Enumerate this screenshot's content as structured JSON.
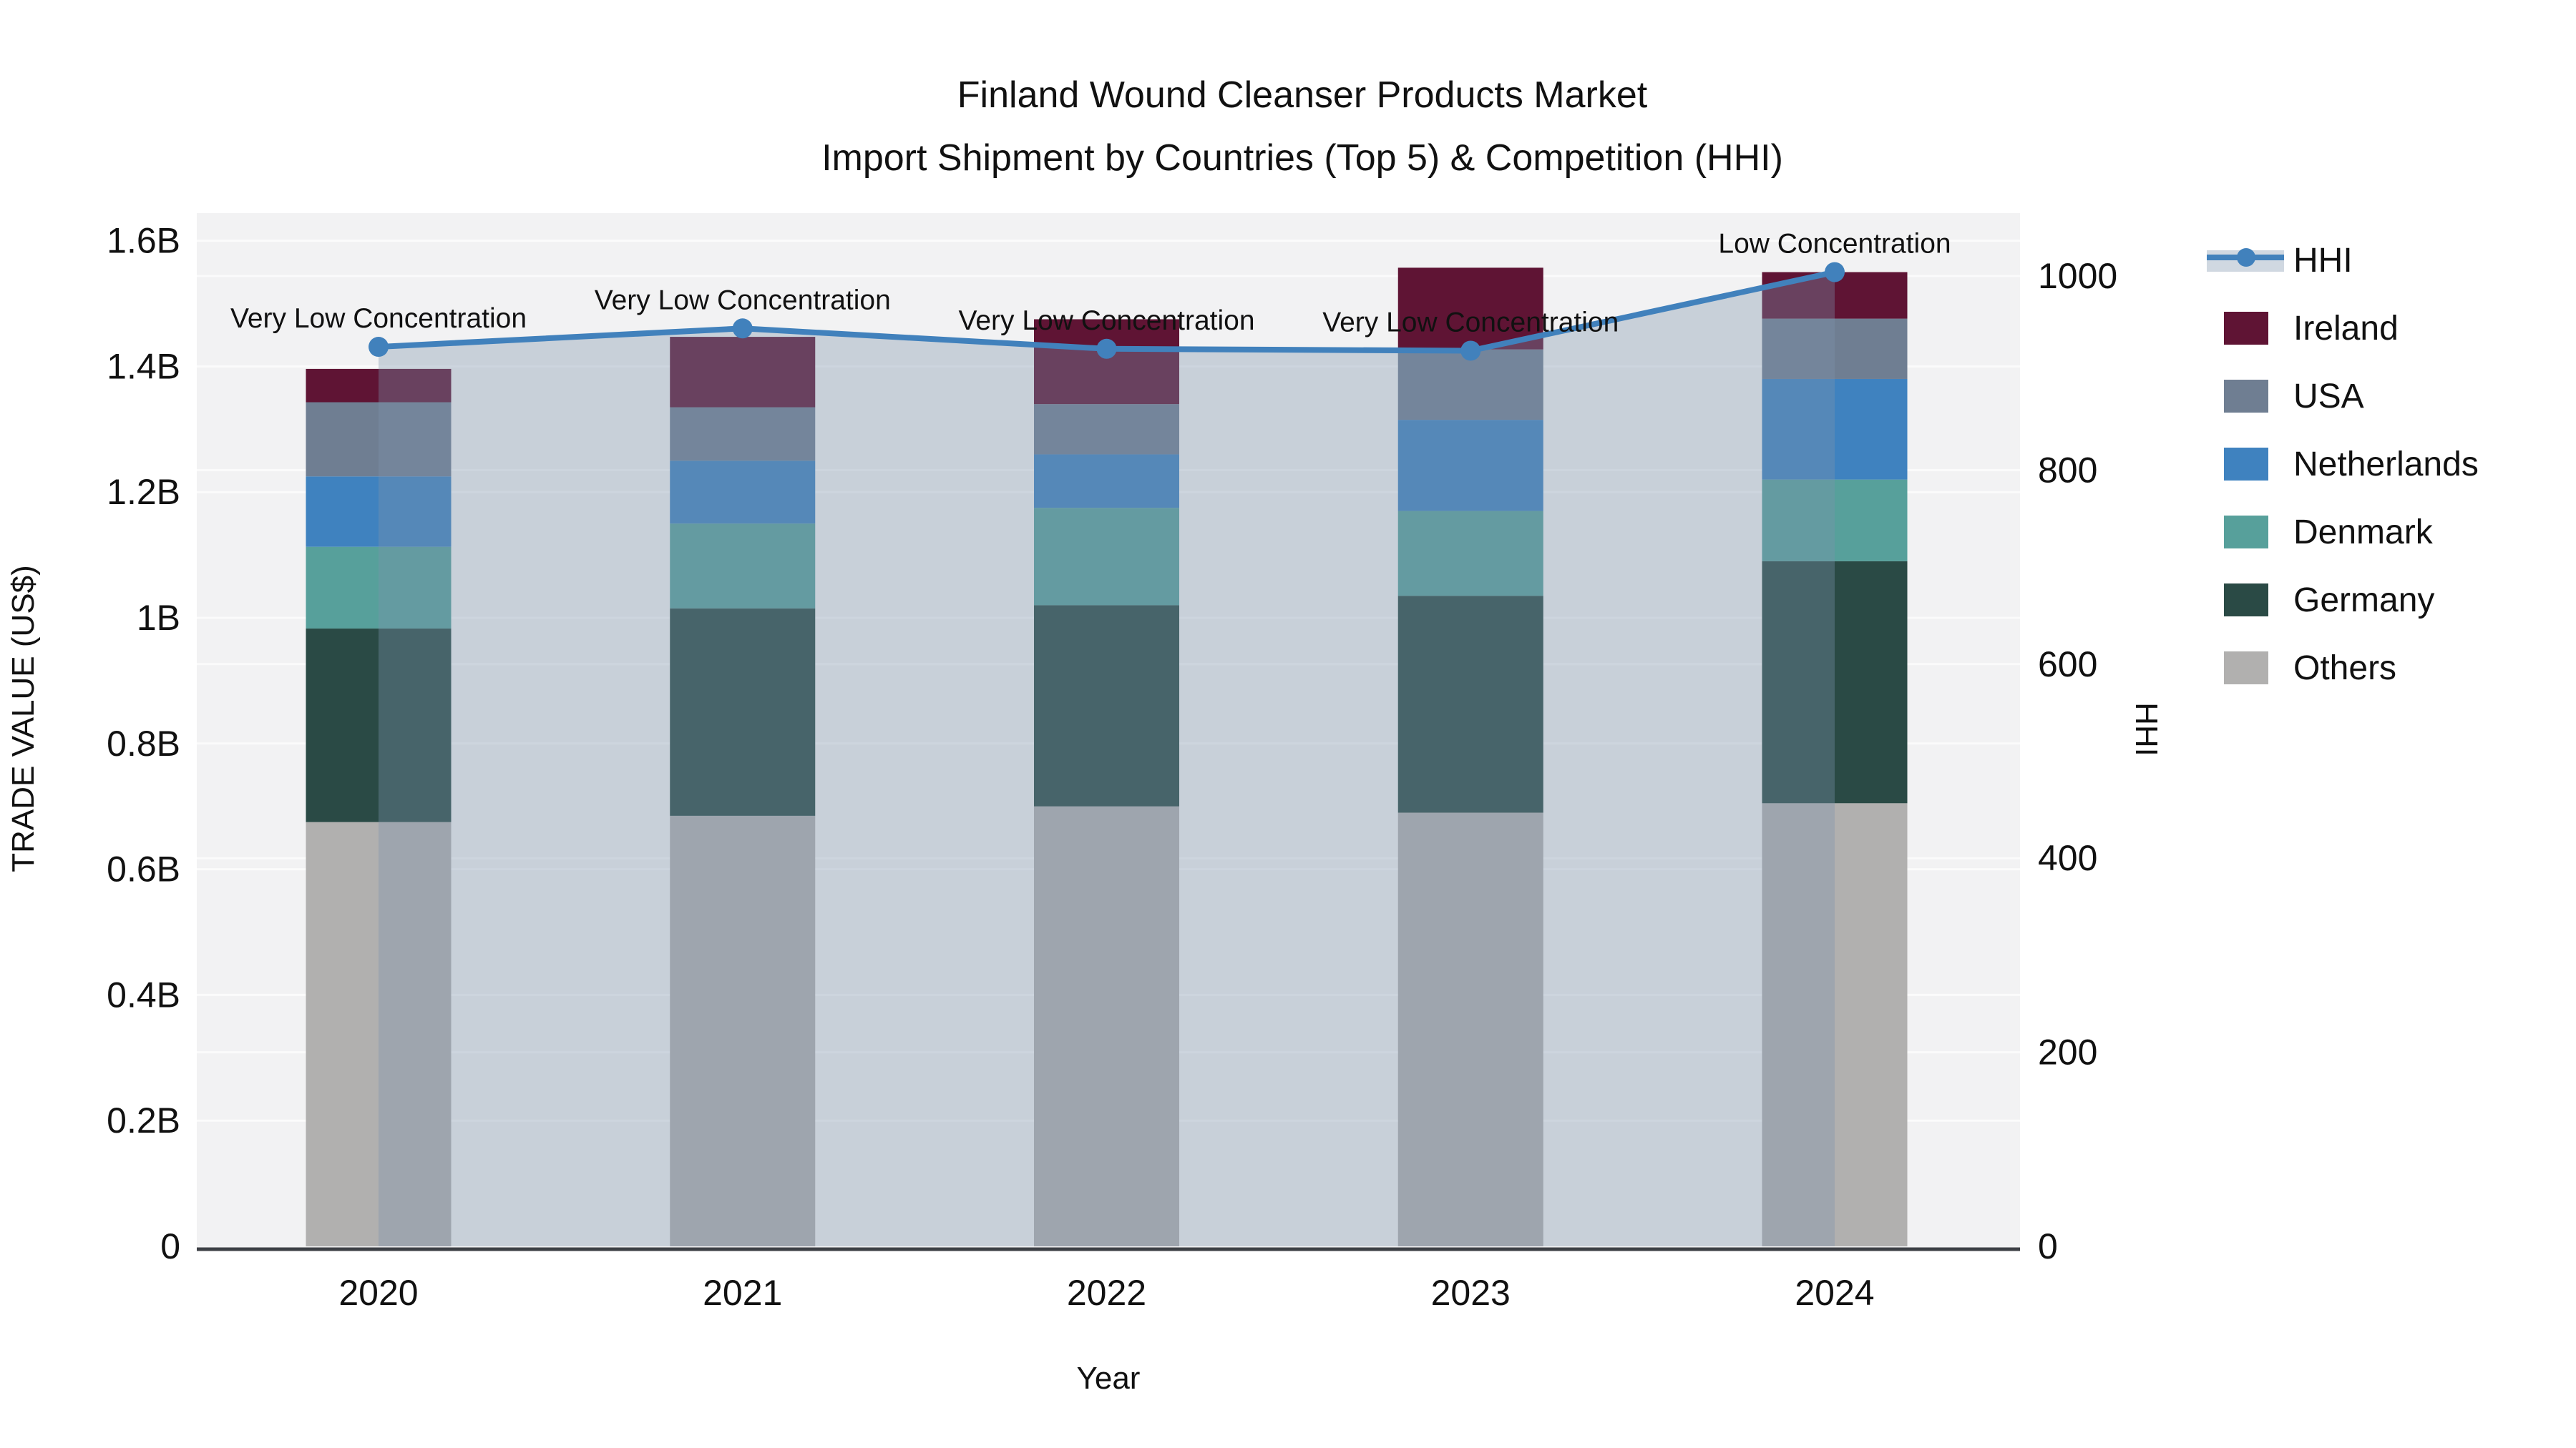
{
  "title": {
    "line1": "Finland Wound Cleanser Products Market",
    "line2": "Import Shipment by Countries (Top 5) & Competition (HHI)"
  },
  "axes": {
    "left": {
      "title": "TRADE VALUE (US$)",
      "tick_labels": [
        "0",
        "0.2B",
        "0.4B",
        "0.6B",
        "0.8B",
        "1B",
        "1.2B",
        "1.4B",
        "1.6B"
      ],
      "tick_values": [
        0,
        0.2,
        0.4,
        0.6,
        0.8,
        1.0,
        1.2,
        1.4,
        1.6
      ],
      "range": [
        0,
        1.644
      ]
    },
    "right": {
      "title": "HHI",
      "tick_labels": [
        "0",
        "200",
        "400",
        "600",
        "800",
        "1000"
      ],
      "tick_values": [
        0,
        200,
        400,
        600,
        800,
        1000
      ],
      "range": [
        0,
        1065
      ]
    },
    "x": {
      "title": "Year"
    }
  },
  "chart_data": {
    "type": "combo: stacked-bar + line-area (dual axis)",
    "categories": [
      "2020",
      "2021",
      "2022",
      "2023",
      "2024"
    ],
    "bar_value_unit": "billions USD (left axis)",
    "bar_series_bottom_to_top": [
      {
        "name": "Others",
        "color": "#b1b0af",
        "values": [
          0.675,
          0.685,
          0.7,
          0.69,
          0.705
        ]
      },
      {
        "name": "Germany",
        "color": "#2a4a45",
        "values": [
          0.308,
          0.33,
          0.32,
          0.345,
          0.385
        ]
      },
      {
        "name": "Denmark",
        "color": "#57a09b",
        "values": [
          0.13,
          0.135,
          0.155,
          0.135,
          0.13
        ]
      },
      {
        "name": "Netherlands",
        "color": "#3f82bf",
        "values": [
          0.112,
          0.1,
          0.085,
          0.145,
          0.16
        ]
      },
      {
        "name": "USA",
        "color": "#6f7e92",
        "values": [
          0.118,
          0.085,
          0.08,
          0.112,
          0.096
        ]
      },
      {
        "name": "Ireland",
        "color": "#5f1434",
        "values": [
          0.053,
          0.112,
          0.135,
          0.13,
          0.074
        ]
      }
    ],
    "bar_totals": [
      1.396,
      1.447,
      1.475,
      1.557,
      1.55
    ],
    "line_series": {
      "name": "HHI",
      "axis": "right",
      "color": "#4181bc",
      "area_fill": "rgba(125,148,172,0.36)",
      "values": [
        927,
        946,
        925,
        923,
        1004
      ],
      "point_annotations": [
        "Very Low Concentration",
        "Very Low Concentration",
        "Very Low Concentration",
        "Very Low Concentration",
        "Low Concentration"
      ]
    }
  },
  "legend": {
    "items": [
      {
        "label": "HHI",
        "color": "#4181bc",
        "type": "line"
      },
      {
        "label": "Ireland",
        "color": "#5f1434",
        "type": "swatch"
      },
      {
        "label": "USA",
        "color": "#6f7e92",
        "type": "swatch"
      },
      {
        "label": "Netherlands",
        "color": "#3f82bf",
        "type": "swatch"
      },
      {
        "label": "Denmark",
        "color": "#57a09b",
        "type": "swatch"
      },
      {
        "label": "Germany",
        "color": "#2a4a45",
        "type": "swatch"
      },
      {
        "label": "Others",
        "color": "#b1b0af",
        "type": "swatch"
      }
    ]
  },
  "colors": {
    "page_bg": "#ffffff",
    "plot_bg": "#f2f2f3",
    "gridline": "#fbfbfb",
    "axis_line": "#3d4045",
    "text": "#111111",
    "hhi_area_over_bg": "#c8d0d9"
  }
}
